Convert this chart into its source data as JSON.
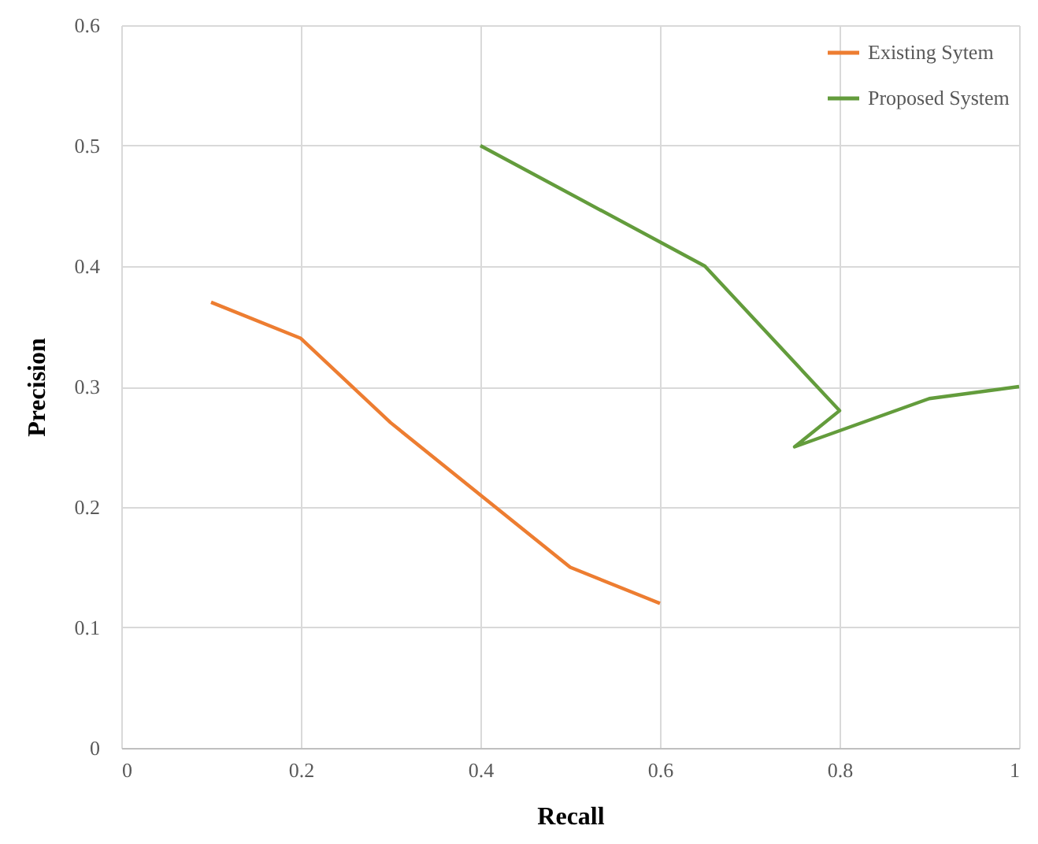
{
  "chart_data": {
    "type": "line",
    "xlabel": "Recall",
    "ylabel": "Precision",
    "xlim": [
      0,
      1
    ],
    "xticks": [
      0,
      0.2,
      0.4,
      0.6,
      0.8,
      1
    ],
    "ylim": [
      0,
      0.6
    ],
    "yticks": [
      0,
      0.1,
      0.2,
      0.3,
      0.4,
      0.5,
      0.6
    ],
    "grid": true,
    "legend": "top right",
    "marker": "none",
    "line_style": "solid",
    "series": [
      {
        "name": "Existing Sytem",
        "color": "#ed7d31",
        "x": [
          0.1,
          0.2,
          0.3,
          0.4,
          0.5,
          0.6
        ],
        "values": [
          0.37,
          0.34,
          0.27,
          0.21,
          0.15,
          0.12
        ]
      },
      {
        "name": "Proposed System",
        "color": "#639c3c",
        "x": [
          0.4,
          0.65,
          0.8,
          0.75,
          0.9,
          1.0
        ],
        "values": [
          0.5,
          0.4,
          0.28,
          0.25,
          0.29,
          0.3
        ]
      }
    ]
  }
}
